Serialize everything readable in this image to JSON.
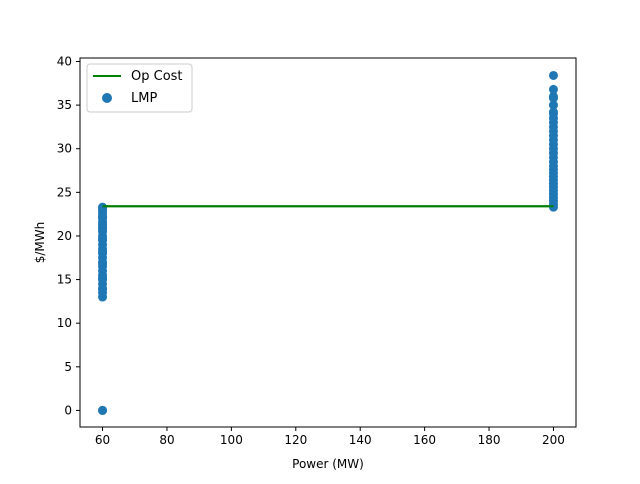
{
  "chart_data": {
    "type": "scatter",
    "title": "",
    "xlabel": "Power (MW)",
    "ylabel": "$/MWh",
    "xlim": [
      53,
      207
    ],
    "ylim": [
      -1.9,
      40.4
    ],
    "xticks": [
      60,
      80,
      100,
      120,
      140,
      160,
      180,
      200
    ],
    "yticks": [
      0,
      5,
      10,
      15,
      20,
      25,
      30,
      35,
      40
    ],
    "grid": false,
    "legend": {
      "position": "top-left",
      "entries": [
        {
          "label": "Op Cost",
          "kind": "line",
          "color": "#008000"
        },
        {
          "label": "LMP",
          "kind": "marker",
          "color": "#1f77b4"
        }
      ]
    },
    "series": [
      {
        "name": "Op Cost",
        "type": "line",
        "color": "#008000",
        "x": [
          60,
          200
        ],
        "y": [
          23.4,
          23.4
        ]
      },
      {
        "name": "LMP",
        "type": "scatter",
        "color": "#1f77b4",
        "x": [
          60,
          60,
          60,
          60,
          60,
          60,
          60,
          60,
          60,
          60,
          60,
          60,
          60,
          60,
          60,
          60,
          60,
          60,
          60,
          60,
          60,
          60,
          60,
          60,
          60,
          60,
          60,
          60,
          60,
          60,
          60,
          60,
          60,
          60,
          200,
          200,
          200,
          200,
          200,
          200,
          200,
          200,
          200,
          200,
          200,
          200,
          200,
          200,
          200,
          200,
          200,
          200,
          200,
          200,
          200,
          200,
          200,
          200,
          200,
          200,
          200,
          200,
          200,
          200,
          200
        ],
        "y": [
          0,
          0,
          13,
          13.5,
          14,
          14.5,
          15,
          15.5,
          16,
          16.5,
          17,
          17.5,
          18,
          18.5,
          19,
          19.5,
          20,
          20.5,
          21,
          21.3,
          21.6,
          22,
          22.3,
          22.6,
          22.9,
          23.1,
          23.3,
          18.2,
          16.8,
          19.7,
          20.8,
          22.2,
          13.9,
          15.2,
          23.3,
          23.6,
          24,
          24.4,
          24.8,
          25.2,
          25.6,
          26,
          26.4,
          26.8,
          27.2,
          27.6,
          28,
          28.5,
          29,
          29.5,
          30,
          30.5,
          31,
          31.5,
          32,
          32.5,
          33,
          33.5,
          34,
          34.2,
          35,
          35.8,
          36,
          36.8,
          38.4
        ]
      }
    ]
  }
}
